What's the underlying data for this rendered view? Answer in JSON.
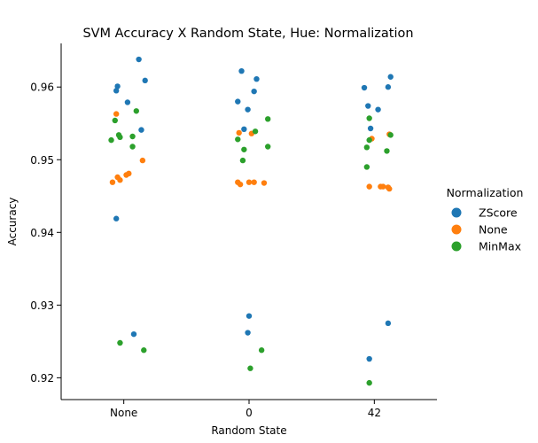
{
  "chart_data": {
    "type": "scatter",
    "subtype": "strip",
    "title": "SVM Accuracy X Random State, Hue: Normalization",
    "xlabel": "Random State",
    "ylabel": "Accuracy",
    "categories": [
      "None",
      "0",
      "42"
    ],
    "ylim": [
      0.917,
      0.966
    ],
    "yticks": [
      0.92,
      0.93,
      0.94,
      0.95,
      0.96
    ],
    "ytick_labels": [
      "0.92",
      "0.93",
      "0.94",
      "0.95",
      "0.96"
    ],
    "grid": false,
    "legend": {
      "title": "Normalization",
      "position": "right"
    },
    "series": [
      {
        "name": "ZScore",
        "color": "#1f77b4",
        "points": [
          {
            "category": "None",
            "jitter": 0.12,
            "y": 0.9638
          },
          {
            "category": "None",
            "jitter": 0.17,
            "y": 0.9609
          },
          {
            "category": "None",
            "jitter": -0.05,
            "y": 0.9601
          },
          {
            "category": "None",
            "jitter": -0.06,
            "y": 0.9595
          },
          {
            "category": "None",
            "jitter": 0.03,
            "y": 0.9579
          },
          {
            "category": "None",
            "jitter": 0.14,
            "y": 0.9541
          },
          {
            "category": "None",
            "jitter": -0.06,
            "y": 0.9419
          },
          {
            "category": "None",
            "jitter": 0.08,
            "y": 0.926
          },
          {
            "category": "0",
            "jitter": -0.06,
            "y": 0.9622
          },
          {
            "category": "0",
            "jitter": 0.06,
            "y": 0.9611
          },
          {
            "category": "0",
            "jitter": 0.04,
            "y": 0.9594
          },
          {
            "category": "0",
            "jitter": -0.09,
            "y": 0.958
          },
          {
            "category": "0",
            "jitter": -0.01,
            "y": 0.9569
          },
          {
            "category": "0",
            "jitter": -0.04,
            "y": 0.9542
          },
          {
            "category": "0",
            "jitter": 0.0,
            "y": 0.9285
          },
          {
            "category": "0",
            "jitter": -0.01,
            "y": 0.9262
          },
          {
            "category": "42",
            "jitter": 0.13,
            "y": 0.9614
          },
          {
            "category": "42",
            "jitter": 0.11,
            "y": 0.96
          },
          {
            "category": "42",
            "jitter": -0.08,
            "y": 0.9599
          },
          {
            "category": "42",
            "jitter": -0.05,
            "y": 0.9574
          },
          {
            "category": "42",
            "jitter": 0.03,
            "y": 0.9569
          },
          {
            "category": "42",
            "jitter": -0.03,
            "y": 0.9543
          },
          {
            "category": "42",
            "jitter": 0.11,
            "y": 0.9275
          },
          {
            "category": "42",
            "jitter": -0.04,
            "y": 0.9226
          }
        ]
      },
      {
        "name": "None",
        "color": "#ff7f0e",
        "points": [
          {
            "category": "None",
            "jitter": -0.06,
            "y": 0.9563
          },
          {
            "category": "None",
            "jitter": 0.15,
            "y": 0.9499
          },
          {
            "category": "None",
            "jitter": 0.04,
            "y": 0.9481
          },
          {
            "category": "None",
            "jitter": 0.02,
            "y": 0.9479
          },
          {
            "category": "None",
            "jitter": -0.05,
            "y": 0.9476
          },
          {
            "category": "None",
            "jitter": -0.03,
            "y": 0.9472
          },
          {
            "category": "None",
            "jitter": -0.09,
            "y": 0.9469
          },
          {
            "category": "0",
            "jitter": -0.08,
            "y": 0.9537
          },
          {
            "category": "0",
            "jitter": 0.02,
            "y": 0.9536
          },
          {
            "category": "0",
            "jitter": -0.09,
            "y": 0.9469
          },
          {
            "category": "0",
            "jitter": 0.0,
            "y": 0.9469
          },
          {
            "category": "0",
            "jitter": 0.04,
            "y": 0.9469
          },
          {
            "category": "0",
            "jitter": 0.12,
            "y": 0.9468
          },
          {
            "category": "0",
            "jitter": -0.07,
            "y": 0.9466
          },
          {
            "category": "42",
            "jitter": 0.12,
            "y": 0.9535
          },
          {
            "category": "42",
            "jitter": -0.02,
            "y": 0.9529
          },
          {
            "category": "42",
            "jitter": -0.04,
            "y": 0.9463
          },
          {
            "category": "42",
            "jitter": 0.05,
            "y": 0.9463
          },
          {
            "category": "42",
            "jitter": 0.07,
            "y": 0.9463
          },
          {
            "category": "42",
            "jitter": 0.11,
            "y": 0.9462
          },
          {
            "category": "42",
            "jitter": 0.12,
            "y": 0.946
          }
        ]
      },
      {
        "name": "MinMax",
        "color": "#2ca02c",
        "points": [
          {
            "category": "None",
            "jitter": 0.1,
            "y": 0.9567
          },
          {
            "category": "None",
            "jitter": -0.07,
            "y": 0.9554
          },
          {
            "category": "None",
            "jitter": -0.04,
            "y": 0.9534
          },
          {
            "category": "None",
            "jitter": 0.07,
            "y": 0.9532
          },
          {
            "category": "None",
            "jitter": -0.03,
            "y": 0.9531
          },
          {
            "category": "None",
            "jitter": -0.1,
            "y": 0.9527
          },
          {
            "category": "None",
            "jitter": 0.07,
            "y": 0.9518
          },
          {
            "category": "None",
            "jitter": -0.03,
            "y": 0.9248
          },
          {
            "category": "None",
            "jitter": 0.16,
            "y": 0.9238
          },
          {
            "category": "0",
            "jitter": 0.15,
            "y": 0.9556
          },
          {
            "category": "0",
            "jitter": 0.05,
            "y": 0.9539
          },
          {
            "category": "0",
            "jitter": -0.09,
            "y": 0.9528
          },
          {
            "category": "0",
            "jitter": 0.15,
            "y": 0.9518
          },
          {
            "category": "0",
            "jitter": -0.04,
            "y": 0.9514
          },
          {
            "category": "0",
            "jitter": -0.05,
            "y": 0.9499
          },
          {
            "category": "0",
            "jitter": 0.1,
            "y": 0.9238
          },
          {
            "category": "0",
            "jitter": 0.01,
            "y": 0.9213
          },
          {
            "category": "42",
            "jitter": -0.04,
            "y": 0.9557
          },
          {
            "category": "42",
            "jitter": 0.13,
            "y": 0.9534
          },
          {
            "category": "42",
            "jitter": -0.04,
            "y": 0.9527
          },
          {
            "category": "42",
            "jitter": -0.06,
            "y": 0.9517
          },
          {
            "category": "42",
            "jitter": 0.1,
            "y": 0.9512
          },
          {
            "category": "42",
            "jitter": -0.06,
            "y": 0.949
          },
          {
            "category": "42",
            "jitter": -0.04,
            "y": 0.9193
          }
        ]
      }
    ]
  }
}
